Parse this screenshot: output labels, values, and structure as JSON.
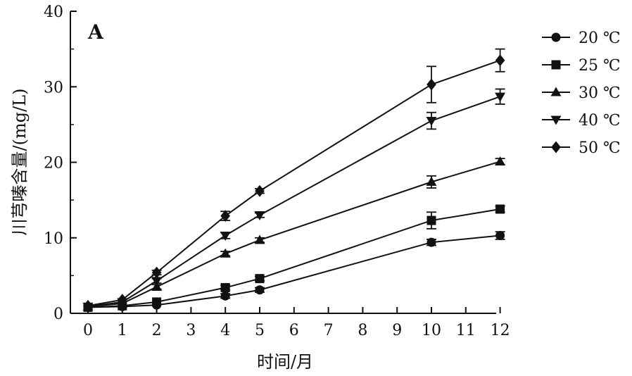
{
  "chart_data": {
    "type": "line",
    "panel_label": "A",
    "xlabel": "时间/月",
    "ylabel": "川芎嗪含量/(mg/L)",
    "x_ticks": [
      "0",
      "1",
      "2",
      "3",
      "4",
      "5",
      "6",
      "7",
      "8",
      "9",
      "10",
      "11",
      "12"
    ],
    "y_ticks": [
      "0",
      "10",
      "20",
      "30",
      "40"
    ],
    "xlim": [
      -0.5,
      12.3
    ],
    "ylim": [
      0,
      40
    ],
    "x": [
      0,
      1,
      2,
      4,
      5,
      10,
      12
    ],
    "series": [
      {
        "name": "20 ℃",
        "marker": "circle",
        "values": [
          0.8,
          0.9,
          1.1,
          2.3,
          3.1,
          9.4,
          10.3
        ],
        "errors": [
          0.2,
          0.2,
          0.2,
          0.3,
          0.3,
          0.4,
          0.5
        ]
      },
      {
        "name": "25 ℃",
        "marker": "square",
        "values": [
          0.8,
          1.0,
          1.5,
          3.4,
          4.6,
          12.3,
          13.8
        ],
        "errors": [
          0.2,
          0.2,
          0.2,
          0.3,
          0.3,
          1.1,
          0.4
        ]
      },
      {
        "name": "30 ℃",
        "marker": "triangle-up",
        "values": [
          0.9,
          1.3,
          3.5,
          7.9,
          9.7,
          17.4,
          20.1
        ],
        "errors": [
          0.2,
          0.2,
          0.3,
          0.3,
          0.3,
          0.8,
          0.4
        ]
      },
      {
        "name": "40 ℃",
        "marker": "triangle-down",
        "values": [
          0.9,
          1.5,
          4.3,
          10.3,
          13.0,
          25.5,
          28.7
        ],
        "errors": [
          0.2,
          0.2,
          0.3,
          0.4,
          0.3,
          1.1,
          1.0
        ]
      },
      {
        "name": "50 ℃",
        "marker": "diamond",
        "values": [
          1.0,
          1.8,
          5.4,
          12.9,
          16.2,
          30.3,
          33.5
        ],
        "errors": [
          0.2,
          0.2,
          0.3,
          0.6,
          0.3,
          2.4,
          1.5
        ]
      }
    ],
    "legend_position": "right",
    "grid": false
  }
}
